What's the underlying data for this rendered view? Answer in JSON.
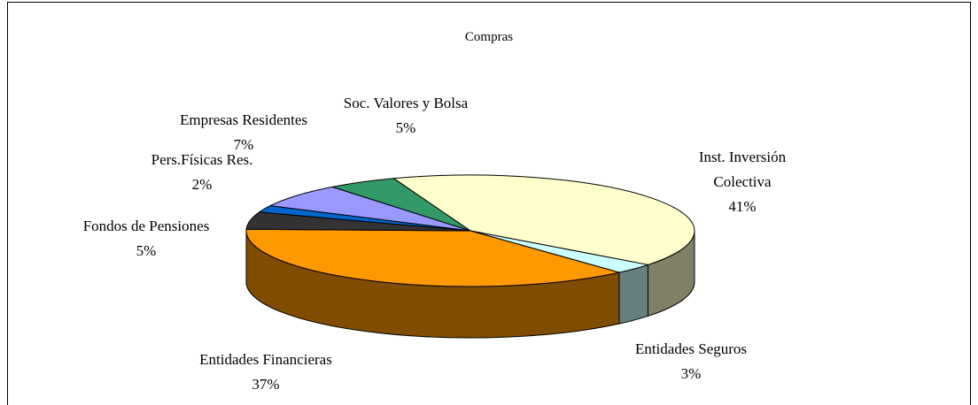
{
  "chart_data": {
    "type": "pie3d",
    "title": "Compras",
    "categories": [
      "Inst. Inversión Colectiva",
      "Entidades Seguros",
      "Entidades Financieras",
      "Fondos de Pensiones",
      "Pers.Físicas Res.",
      "Empresas Residentes",
      "Soc. Valores y Bolsa"
    ],
    "values": [
      41,
      3,
      37,
      5,
      2,
      7,
      5
    ],
    "value_labels": [
      "41%",
      "3%",
      "37%",
      "5%",
      "2%",
      "7%",
      "5%"
    ],
    "colors": [
      "#ffffcc",
      "#ccffff",
      "#ff9900",
      "#333333",
      "#0066cc",
      "#9999ff",
      "#339966"
    ]
  }
}
